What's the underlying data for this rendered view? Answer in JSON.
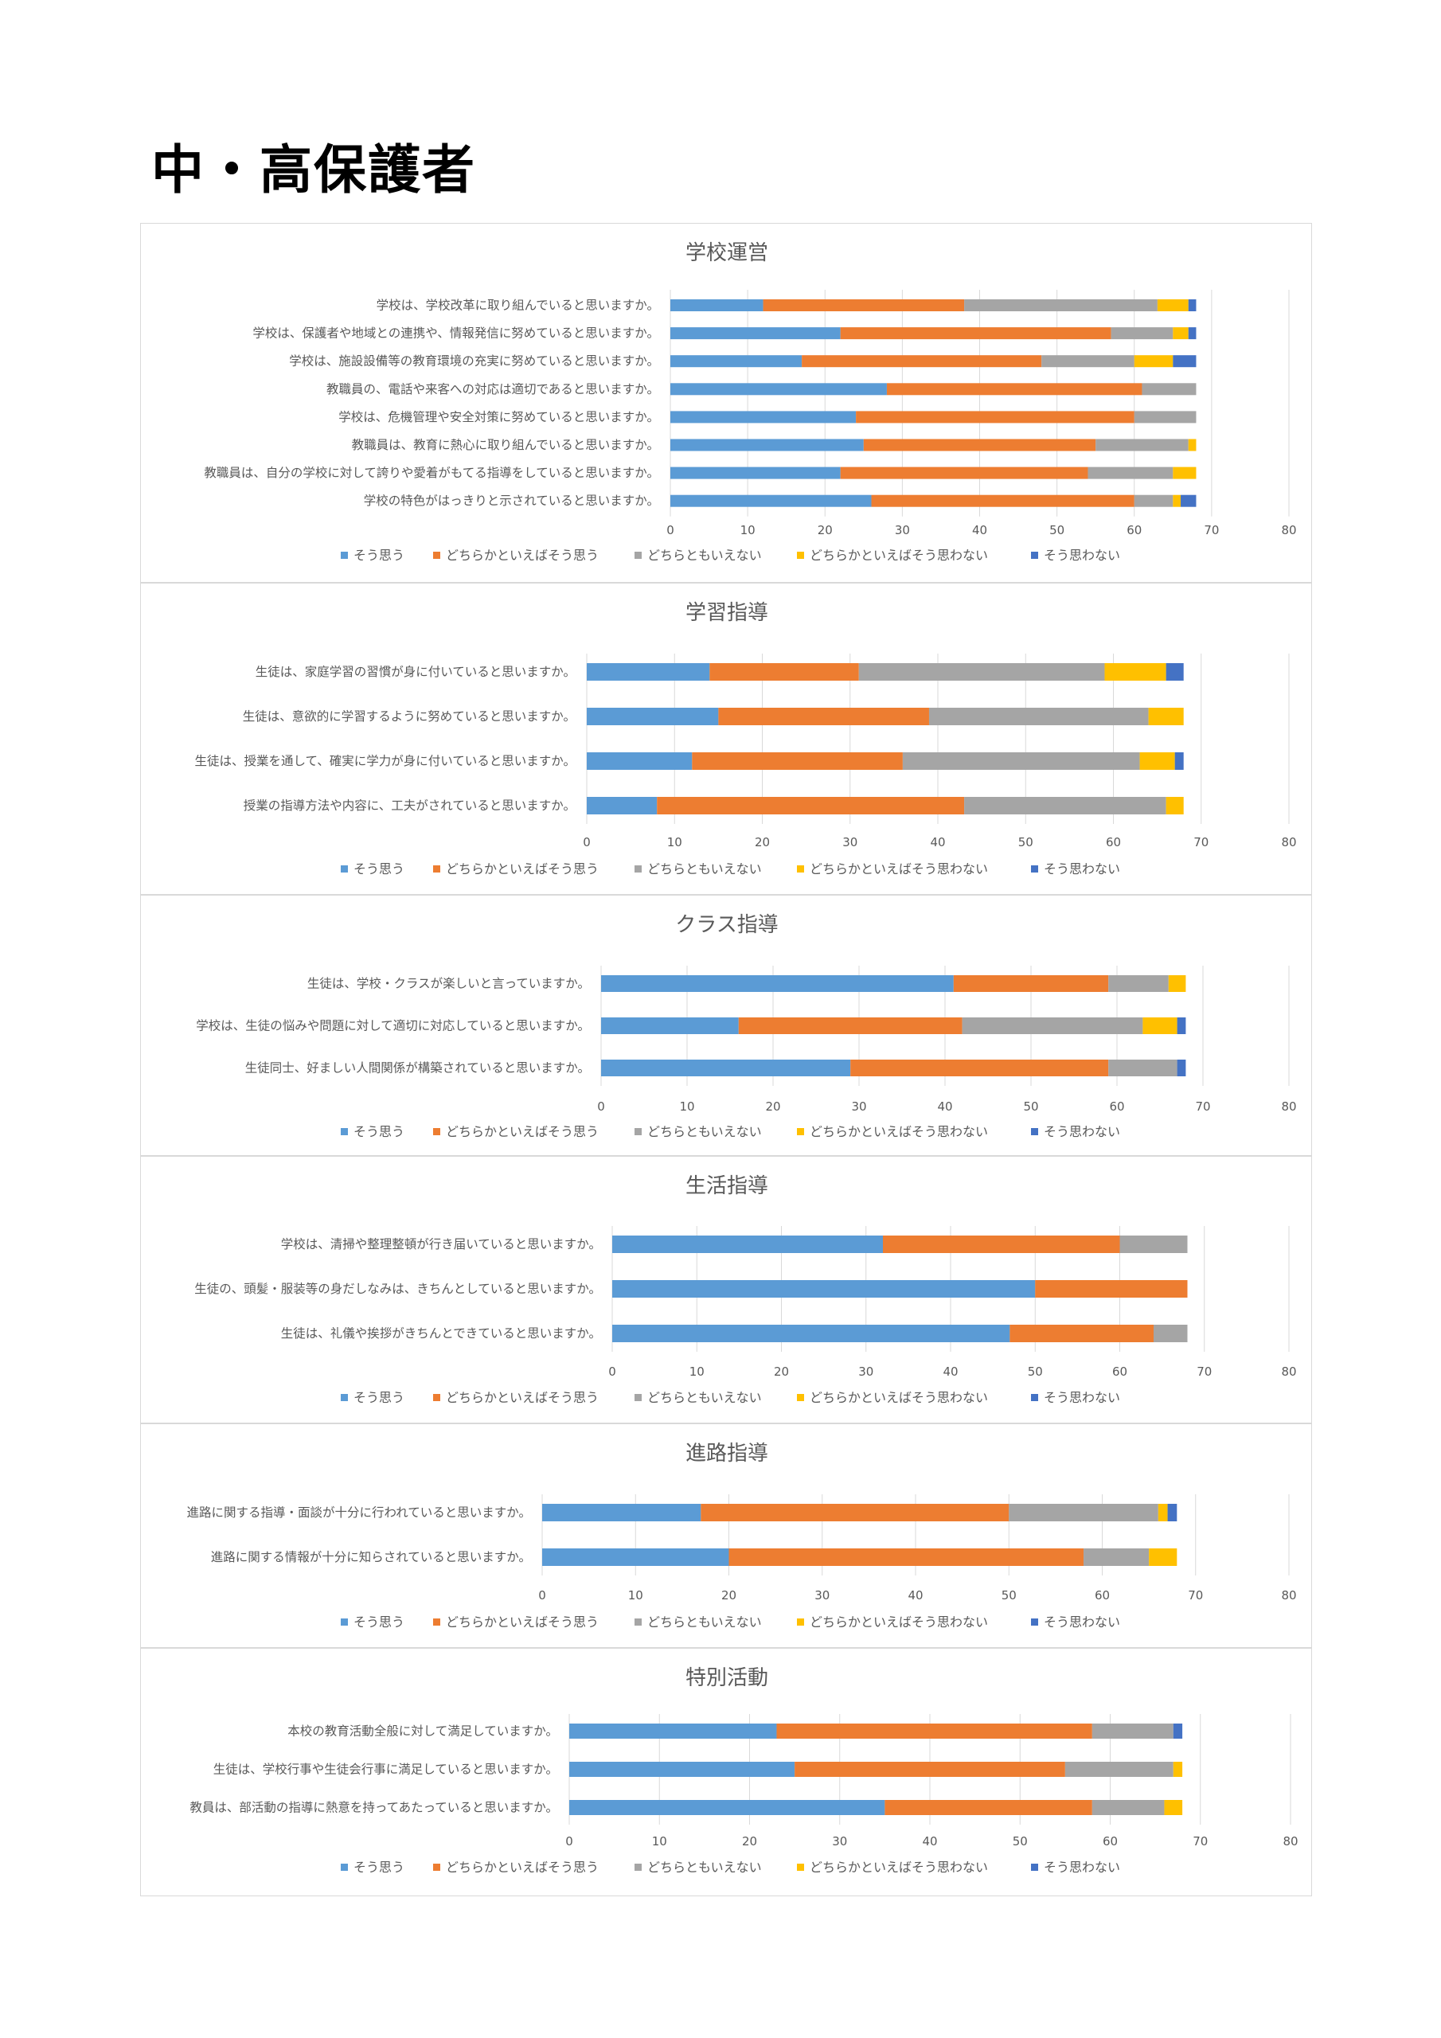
{
  "page": {
    "title": "中・高保護者"
  },
  "legend": [
    {
      "name": "そう思う",
      "color": "#5B9BD5"
    },
    {
      "name": "どちらかといえばそう思う",
      "color": "#ED7D31"
    },
    {
      "name": "どちらともいえない",
      "color": "#A5A5A5"
    },
    {
      "name": "どちらかといえばそう思わない",
      "color": "#FFC000"
    },
    {
      "name": "そう思わない",
      "color": "#4472C4"
    }
  ],
  "chart_data": [
    {
      "type": "bar",
      "orientation": "horizontal",
      "stacked": true,
      "title": "学校運営",
      "xlim": [
        0,
        80
      ],
      "xticks": [
        0,
        10,
        20,
        30,
        40,
        50,
        60,
        70,
        80
      ],
      "grid": true,
      "legend_position": "bottom",
      "categories": [
        "学校は、学校改革に取り組んでいると思いますか。",
        "学校は、保護者や地域との連携や、情報発信に努めていると思いますか。",
        "学校は、施設設備等の教育環境の充実に努めていると思いますか。",
        "教職員の、電話や来客への対応は適切であると思いますか。",
        "学校は、危機管理や安全対策に努めていると思いますか。",
        "教職員は、教育に熱心に取り組んでいると思いますか。",
        "教職員は、自分の学校に対して誇りや愛着がもてる指導をしていると思いますか。",
        "学校の特色がはっきりと示されていると思いますか。"
      ],
      "series": [
        {
          "name": "そう思う",
          "values": [
            12,
            22,
            17,
            28,
            24,
            25,
            22,
            26
          ]
        },
        {
          "name": "どちらかといえばそう思う",
          "values": [
            26,
            35,
            31,
            33,
            36,
            30,
            32,
            34
          ]
        },
        {
          "name": "どちらともいえない",
          "values": [
            25,
            8,
            12,
            7,
            8,
            12,
            11,
            5
          ]
        },
        {
          "name": "どちらかといえばそう思わない",
          "values": [
            4,
            2,
            5,
            0,
            0,
            1,
            3,
            1
          ]
        },
        {
          "name": "そう思わない",
          "values": [
            1,
            1,
            3,
            0,
            0,
            0,
            0,
            2
          ]
        }
      ]
    },
    {
      "type": "bar",
      "orientation": "horizontal",
      "stacked": true,
      "title": "学習指導",
      "xlim": [
        0,
        80
      ],
      "xticks": [
        0,
        10,
        20,
        30,
        40,
        50,
        60,
        70,
        80
      ],
      "grid": true,
      "legend_position": "bottom",
      "categories": [
        "生徒は、家庭学習の習慣が身に付いていると思いますか。",
        "生徒は、意欲的に学習するように努めていると思いますか。",
        "生徒は、授業を通して、確実に学力が身に付いていると思いますか。",
        "授業の指導方法や内容に、工夫がされていると思いますか。"
      ],
      "series": [
        {
          "name": "そう思う",
          "values": [
            14,
            15,
            12,
            8
          ]
        },
        {
          "name": "どちらかといえばそう思う",
          "values": [
            17,
            24,
            24,
            35
          ]
        },
        {
          "name": "どちらともいえない",
          "values": [
            28,
            25,
            27,
            23
          ]
        },
        {
          "name": "どちらかといえばそう思わない",
          "values": [
            7,
            4,
            4,
            2
          ]
        },
        {
          "name": "そう思わない",
          "values": [
            2,
            0,
            1,
            0
          ]
        }
      ]
    },
    {
      "type": "bar",
      "orientation": "horizontal",
      "stacked": true,
      "title": "クラス指導",
      "xlim": [
        0,
        80
      ],
      "xticks": [
        0,
        10,
        20,
        30,
        40,
        50,
        60,
        70,
        80
      ],
      "grid": true,
      "legend_position": "bottom",
      "categories": [
        "生徒は、学校・クラスが楽しいと言っていますか。",
        "学校は、生徒の悩みや問題に対して適切に対応していると思いますか。",
        "生徒同士、好ましい人間関係が構築されていると思いますか。"
      ],
      "series": [
        {
          "name": "そう思う",
          "values": [
            41,
            16,
            29
          ]
        },
        {
          "name": "どちらかといえばそう思う",
          "values": [
            18,
            26,
            30
          ]
        },
        {
          "name": "どちらともいえない",
          "values": [
            7,
            21,
            8
          ]
        },
        {
          "name": "どちらかといえばそう思わない",
          "values": [
            2,
            4,
            0
          ]
        },
        {
          "name": "そう思わない",
          "values": [
            0,
            1,
            1
          ]
        }
      ]
    },
    {
      "type": "bar",
      "orientation": "horizontal",
      "stacked": true,
      "title": "生活指導",
      "xlim": [
        0,
        80
      ],
      "xticks": [
        0,
        10,
        20,
        30,
        40,
        50,
        60,
        70,
        80
      ],
      "grid": true,
      "legend_position": "bottom",
      "categories": [
        "学校は、清掃や整理整頓が行き届いていると思いますか。",
        "生徒の、頭髪・服装等の身だしなみは、きちんとしていると思いますか。",
        "生徒は、礼儀や挨拶がきちんとできていると思いますか。"
      ],
      "series": [
        {
          "name": "そう思う",
          "values": [
            32,
            50,
            47
          ]
        },
        {
          "name": "どちらかといえばそう思う",
          "values": [
            28,
            18,
            17
          ]
        },
        {
          "name": "どちらともいえない",
          "values": [
            8,
            0,
            4
          ]
        },
        {
          "name": "どちらかといえばそう思わない",
          "values": [
            0,
            0,
            0
          ]
        },
        {
          "name": "そう思わない",
          "values": [
            0,
            0,
            0
          ]
        }
      ]
    },
    {
      "type": "bar",
      "orientation": "horizontal",
      "stacked": true,
      "title": "進路指導",
      "xlim": [
        0,
        80
      ],
      "xticks": [
        0,
        10,
        20,
        30,
        40,
        50,
        60,
        70,
        80
      ],
      "grid": true,
      "legend_position": "bottom",
      "categories": [
        "進路に関する指導・面談が十分に行われていると思いますか。",
        "進路に関する情報が十分に知らされていると思いますか。"
      ],
      "series": [
        {
          "name": "そう思う",
          "values": [
            17,
            20
          ]
        },
        {
          "name": "どちらかといえばそう思う",
          "values": [
            33,
            38
          ]
        },
        {
          "name": "どちらともいえない",
          "values": [
            16,
            7
          ]
        },
        {
          "name": "どちらかといえばそう思わない",
          "values": [
            1,
            3
          ]
        },
        {
          "name": "そう思わない",
          "values": [
            1,
            0
          ]
        }
      ]
    },
    {
      "type": "bar",
      "orientation": "horizontal",
      "stacked": true,
      "title": "特別活動",
      "xlim": [
        0,
        80
      ],
      "xticks": [
        0,
        10,
        20,
        30,
        40,
        50,
        60,
        70,
        80
      ],
      "grid": true,
      "legend_position": "bottom",
      "categories": [
        "本校の教育活動全般に対して満足していますか。",
        "生徒は、学校行事や生徒会行事に満足していると思いますか。",
        "教員は、部活動の指導に熱意を持ってあたっていると思いますか。"
      ],
      "series": [
        {
          "name": "そう思う",
          "values": [
            23,
            25,
            35
          ]
        },
        {
          "name": "どちらかといえばそう思う",
          "values": [
            35,
            30,
            23
          ]
        },
        {
          "name": "どちらともいえない",
          "values": [
            9,
            12,
            8
          ]
        },
        {
          "name": "どちらかといえばそう思わない",
          "values": [
            0,
            1,
            2
          ]
        },
        {
          "name": "そう思わない",
          "values": [
            1,
            0,
            0
          ]
        }
      ]
    }
  ]
}
